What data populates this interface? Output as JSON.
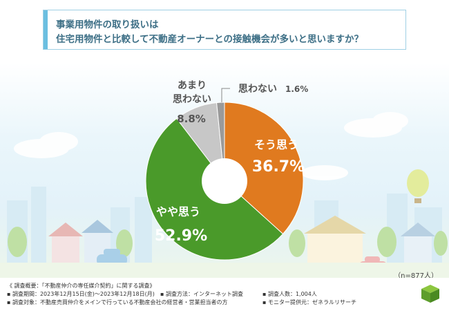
{
  "title": {
    "line1": "事業用物件の取り扱いは",
    "line2": "住宅用物件と比較して不動産オーナーとの接触機会が多いと思いますか？"
  },
  "chart_data": {
    "type": "pie",
    "slices": [
      {
        "label": "そう思う",
        "value": 36.7,
        "color": "#e07a1f"
      },
      {
        "label": "やや思う",
        "value": 52.9,
        "color": "#4a9a2a"
      },
      {
        "label": "あまり思わない",
        "value": 8.8,
        "color": "#c7c7c7"
      },
      {
        "label": "思わない",
        "value": 1.6,
        "color": "#9a9a9a"
      }
    ],
    "value_suffix": "%",
    "labels": {
      "sou": {
        "name": "そう思う",
        "value": "36.7%"
      },
      "yaya": {
        "name": "やや思う",
        "value": "52.9%"
      },
      "amari": {
        "name_line1": "あまり",
        "name_line2": "思わない",
        "value": "8.8%"
      },
      "omowanai": {
        "name": "思わない",
        "value": "1.6%"
      }
    }
  },
  "sample": "（n=877人）",
  "footer": {
    "summary": "《 調査概要：「不動産仲介の専任媒介契約」に関する調査》",
    "period": "▪ 調査期間：2023年12月15日(金)〜2023年12月18日(月)",
    "method": "▪ 調査方法：インターネット調査",
    "count": "▪ 調査人数：1,004人",
    "target": "▪ 調査対象：不動産売買仲介をメインで行っている不動産会社の経営者・営業担当者の方",
    "provider": "▪ モニター提供元：ゼネラルリサーチ"
  },
  "colors": {
    "title_text": "#3d6f86",
    "title_border": "#9fd0e4"
  }
}
